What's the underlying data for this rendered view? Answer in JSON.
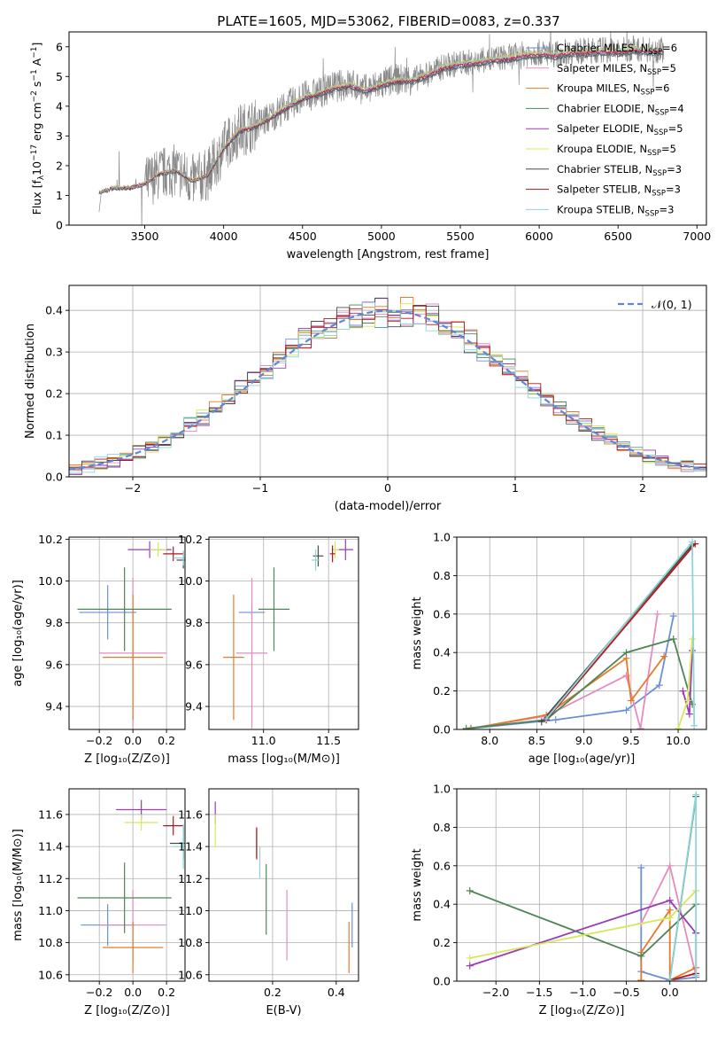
{
  "figure": {
    "title": "PLATE=1605, MJD=53062, FIBERID=0083, z=0.337"
  },
  "models": [
    {
      "name": "Chabrier MILES, N",
      "sub": "SSP",
      "tail": "=6",
      "color": "#6a8fd6"
    },
    {
      "name": "Salpeter MILES, N",
      "sub": "SSP",
      "tail": "=5",
      "color": "#e58bbf"
    },
    {
      "name": "Kroupa MILES, N",
      "sub": "SSP",
      "tail": "=6",
      "color": "#e8792a"
    },
    {
      "name": "Chabrier ELODIE, N",
      "sub": "SSP",
      "tail": "=4",
      "color": "#4f8558"
    },
    {
      "name": "Salpeter ELODIE, N",
      "sub": "SSP",
      "tail": "=5",
      "color": "#9b3bb5"
    },
    {
      "name": "Kroupa ELODIE, N",
      "sub": "SSP",
      "tail": "=5",
      "color": "#d6e85a"
    },
    {
      "name": "Chabrier STELIB, N",
      "sub": "SSP",
      "tail": "=3",
      "color": "#4a4a4a"
    },
    {
      "name": "Salpeter STELIB, N",
      "sub": "SSP",
      "tail": "=3",
      "color": "#b5151c"
    },
    {
      "name": "Kroupa STELIB, N",
      "sub": "SSP",
      "tail": "=3",
      "color": "#8ad6d6"
    }
  ],
  "chart_data": [
    {
      "id": "spectrum",
      "type": "line",
      "xlabel": "wavelength [Angstrom, rest frame]",
      "ylabel_parts": [
        "Flux [f",
        "λ",
        "10",
        "−17",
        " erg cm",
        "−2",
        " s",
        "−1",
        " A",
        "−1",
        "]"
      ],
      "xlim": [
        3020,
        7060
      ],
      "ylim": [
        0,
        6.5
      ],
      "xticks": [
        3500,
        4000,
        4500,
        5000,
        5500,
        6000,
        6500,
        7000
      ],
      "yticks": [
        0,
        1,
        2,
        3,
        4,
        5,
        6
      ],
      "data_color": "#8a8a8a",
      "data_x_range": [
        3210,
        6790
      ],
      "continuum": [
        [
          3210,
          1.1
        ],
        [
          3300,
          1.25
        ],
        [
          3400,
          1.25
        ],
        [
          3500,
          1.4
        ],
        [
          3600,
          1.75
        ],
        [
          3700,
          1.85
        ],
        [
          3800,
          1.5
        ],
        [
          3900,
          1.7
        ],
        [
          4000,
          2.6
        ],
        [
          4100,
          3.2
        ],
        [
          4200,
          3.35
        ],
        [
          4300,
          3.65
        ],
        [
          4400,
          4.0
        ],
        [
          4500,
          4.3
        ],
        [
          4600,
          4.45
        ],
        [
          4700,
          4.65
        ],
        [
          4800,
          4.75
        ],
        [
          4900,
          4.55
        ],
        [
          5000,
          4.75
        ],
        [
          5100,
          4.9
        ],
        [
          5200,
          4.9
        ],
        [
          5300,
          5.1
        ],
        [
          5400,
          5.35
        ],
        [
          5500,
          5.45
        ],
        [
          5600,
          5.5
        ],
        [
          5700,
          5.6
        ],
        [
          5800,
          5.65
        ],
        [
          5900,
          5.75
        ],
        [
          6000,
          5.8
        ],
        [
          6100,
          5.75
        ],
        [
          6200,
          5.85
        ],
        [
          6300,
          5.85
        ],
        [
          6400,
          5.9
        ],
        [
          6500,
          5.85
        ],
        [
          6600,
          5.95
        ],
        [
          6700,
          5.9
        ],
        [
          6790,
          5.9
        ]
      ]
    },
    {
      "id": "residuals",
      "type": "histogram",
      "xlabel": "(data-model)/error",
      "ylabel": "Normed distribution",
      "xlim": [
        -2.5,
        2.5
      ],
      "ylim": [
        0,
        0.46
      ],
      "xticks": [
        -2,
        -1,
        0,
        1,
        2
      ],
      "yticks": [
        0.0,
        0.1,
        0.2,
        0.3,
        0.4
      ],
      "bin_width": 0.1,
      "normal_legend": "𝒩(0, 1)",
      "normal_color": "#5f86d6",
      "grid": true
    },
    {
      "id": "age-metal",
      "type": "errorbar",
      "xlabel": "Z [log₁₀(Z/Z⊙)]",
      "ylabel": "age  [log₁₀(age/yr)]",
      "xlim": [
        -0.38,
        0.31
      ],
      "ylim": [
        9.29,
        10.21
      ],
      "xticks": [
        -0.2,
        0.0,
        0.2
      ],
      "xticklabels": [
        "−0.2",
        "0.0",
        "0.2"
      ],
      "yticks": [
        9.4,
        9.6,
        9.8,
        10.0,
        10.2
      ],
      "points": [
        {
          "x": -0.15,
          "xe": 0.17,
          "y": 9.85,
          "ye": 0.13,
          "c": 0
        },
        {
          "x": 0.0,
          "xe": 0.2,
          "y": 9.655,
          "ye": 0.36,
          "c": 1
        },
        {
          "x": 0.0,
          "xe": 0.18,
          "y": 9.635,
          "ye": 0.3,
          "c": 2
        },
        {
          "x": -0.05,
          "xe": 0.28,
          "y": 9.865,
          "ye": 0.2,
          "c": 3
        },
        {
          "x": 0.1,
          "xe": 0.13,
          "y": 10.15,
          "ye": 0.04,
          "c": 4
        },
        {
          "x": 0.15,
          "xe": 0.05,
          "y": 10.15,
          "ye": 0.035,
          "c": 5
        },
        {
          "x": 0.3,
          "xe": 0.04,
          "y": 10.1,
          "ye": 0.04,
          "c": 6
        },
        {
          "x": 0.24,
          "xe": 0.06,
          "y": 10.13,
          "ye": 0.035,
          "c": 7
        },
        {
          "x": 0.3,
          "xe": 0.06,
          "y": 10.11,
          "ye": 0.035,
          "c": 8
        }
      ]
    },
    {
      "id": "age-mass",
      "type": "errorbar",
      "xlabel": "mass [log₁₀(M/M⊙)]",
      "xlim": [
        10.58,
        11.73
      ],
      "ylim": [
        9.29,
        10.21
      ],
      "xticks": [
        11.0,
        11.5
      ],
      "yticks": [
        9.4,
        9.6,
        9.8,
        10.0,
        10.2
      ],
      "points": [
        {
          "x": 10.91,
          "xe": 0.1,
          "y": 9.85,
          "ye": 0.03,
          "c": 0
        },
        {
          "x": 10.91,
          "xe": 0.12,
          "y": 9.655,
          "ye": 0.36,
          "c": 1
        },
        {
          "x": 10.77,
          "xe": 0.08,
          "y": 9.635,
          "ye": 0.3,
          "c": 2
        },
        {
          "x": 11.08,
          "xe": 0.12,
          "y": 9.865,
          "ye": 0.2,
          "c": 3
        },
        {
          "x": 11.63,
          "xe": 0.06,
          "y": 10.15,
          "ye": 0.05,
          "c": 4
        },
        {
          "x": 11.55,
          "xe": 0.03,
          "y": 10.15,
          "ye": 0.04,
          "c": 5
        },
        {
          "x": 11.42,
          "xe": 0.04,
          "y": 10.12,
          "ye": 0.05,
          "c": 6
        },
        {
          "x": 11.53,
          "xe": 0.02,
          "y": 10.13,
          "ye": 0.04,
          "c": 7
        },
        {
          "x": 11.4,
          "xe": 0.03,
          "y": 10.1,
          "ye": 0.05,
          "c": 8
        }
      ]
    },
    {
      "id": "massweight-age",
      "type": "line",
      "xlabel": "age  [log₁₀(age/yr)]",
      "ylabel": "mass weight",
      "xlim": [
        7.65,
        10.3
      ],
      "ylim": [
        0,
        1.0
      ],
      "xticks": [
        8.0,
        8.5,
        9.0,
        9.5,
        10.0
      ],
      "yticks": [
        0.0,
        0.2,
        0.4,
        0.6,
        0.8,
        1.0
      ],
      "series": [
        {
          "c": 0,
          "pts": [
            [
              7.8,
              0.005
            ],
            [
              8.7,
              0.05
            ],
            [
              9.45,
              0.1
            ],
            [
              9.8,
              0.23
            ],
            [
              9.95,
              0.59
            ]
          ]
        },
        {
          "c": 1,
          "pts": [
            [
              7.8,
              0.005
            ],
            [
              8.6,
              0.07
            ],
            [
              9.45,
              0.28
            ],
            [
              9.6,
              0.005
            ],
            [
              9.78,
              0.6
            ]
          ]
        },
        {
          "c": 2,
          "pts": [
            [
              7.8,
              0.005
            ],
            [
              8.6,
              0.075
            ],
            [
              9.45,
              0.37
            ],
            [
              9.5,
              0.15
            ],
            [
              9.85,
              0.38
            ]
          ]
        },
        {
          "c": 3,
          "pts": [
            [
              7.75,
              0.005
            ],
            [
              8.6,
              0.05
            ],
            [
              9.45,
              0.4
            ],
            [
              9.95,
              0.47
            ],
            [
              10.15,
              0.13
            ]
          ]
        },
        {
          "c": 4,
          "pts": [
            [
              10.05,
              0.2
            ],
            [
              10.12,
              0.08
            ],
            [
              10.15,
              0.41
            ]
          ]
        },
        {
          "c": 5,
          "pts": [
            [
              10.0,
              0.005
            ],
            [
              10.1,
              0.15
            ],
            [
              10.15,
              0.47
            ]
          ]
        },
        {
          "c": 6,
          "pts": [
            [
              8.55,
              0.04
            ],
            [
              10.15,
              0.96
            ]
          ]
        },
        {
          "c": 7,
          "pts": [
            [
              8.6,
              0.05
            ],
            [
              10.18,
              0.965
            ]
          ]
        },
        {
          "c": 8,
          "pts": [
            [
              8.6,
              0.055
            ],
            [
              10.15,
              0.975
            ],
            [
              10.17,
              0.02
            ]
          ]
        }
      ]
    },
    {
      "id": "mass-metal",
      "type": "errorbar",
      "xlabel": "Z [log₁₀(Z/Z⊙)]",
      "ylabel": "mass [log₁₀(M/M⊙)]",
      "xlim": [
        -0.38,
        0.31
      ],
      "ylim": [
        10.56,
        11.76
      ],
      "xticks": [
        -0.2,
        0.0,
        0.2
      ],
      "xticklabels": [
        "−0.2",
        "0.0",
        "0.2"
      ],
      "yticks": [
        10.6,
        10.8,
        11.0,
        11.2,
        11.4,
        11.6
      ],
      "points": [
        {
          "x": -0.15,
          "xe": 0.16,
          "y": 10.91,
          "ye": 0.13,
          "c": 0
        },
        {
          "x": 0.0,
          "xe": 0.2,
          "y": 10.91,
          "ye": 0.22,
          "c": 1
        },
        {
          "x": 0.0,
          "xe": 0.18,
          "y": 10.77,
          "ye": 0.16,
          "c": 2
        },
        {
          "x": -0.05,
          "xe": 0.28,
          "y": 11.08,
          "ye": 0.22,
          "c": 3
        },
        {
          "x": 0.05,
          "xe": 0.15,
          "y": 11.63,
          "ye": 0.06,
          "c": 4
        },
        {
          "x": 0.05,
          "xe": 0.1,
          "y": 11.55,
          "ye": 0.05,
          "c": 5
        },
        {
          "x": 0.3,
          "xe": 0.08,
          "y": 11.42,
          "ye": 0.1,
          "c": 6
        },
        {
          "x": 0.24,
          "xe": 0.06,
          "y": 11.53,
          "ye": 0.06,
          "c": 7
        },
        {
          "x": 0.3,
          "xe": 0.06,
          "y": 11.4,
          "ye": 0.14,
          "c": 8
        }
      ]
    },
    {
      "id": "mass-ebv",
      "type": "errorbar",
      "xlabel": "E(B-V)",
      "xlim": [
        0.0,
        0.47
      ],
      "ylim": [
        10.56,
        11.76
      ],
      "xticks": [
        0.2,
        0.4
      ],
      "yticks": [
        10.6,
        10.8,
        11.0,
        11.2,
        11.4,
        11.6
      ],
      "points": [
        {
          "x": 0.45,
          "xe": 0,
          "y": 10.91,
          "ye": 0.14,
          "c": 0
        },
        {
          "x": 0.245,
          "xe": 0,
          "y": 10.91,
          "ye": 0.22,
          "c": 1
        },
        {
          "x": 0.44,
          "xe": 0,
          "y": 10.77,
          "ye": 0.16,
          "c": 2
        },
        {
          "x": 0.18,
          "xe": 0,
          "y": 11.07,
          "ye": 0.22,
          "c": 3
        },
        {
          "x": 0.02,
          "xe": 0,
          "y": 11.61,
          "ye": 0.07,
          "c": 4
        },
        {
          "x": 0.02,
          "xe": 0,
          "y": 11.5,
          "ye": 0.1,
          "c": 5
        },
        {
          "x": 0.15,
          "xe": 0,
          "y": 11.42,
          "ye": 0.09,
          "c": 6
        },
        {
          "x": 0.15,
          "xe": 0,
          "y": 11.42,
          "ye": 0.1,
          "c": 7
        },
        {
          "x": 0.16,
          "xe": 0,
          "y": 11.3,
          "ye": 0.1,
          "c": 8
        }
      ]
    },
    {
      "id": "massweight-metal",
      "type": "line",
      "xlabel": "Z [log₁₀(Z/Z⊙)]",
      "ylabel": "mass weight",
      "xlim": [
        -2.45,
        0.42
      ],
      "ylim": [
        0,
        1.0
      ],
      "xticks": [
        -2.0,
        -1.5,
        -1.0,
        -0.5,
        0.0
      ],
      "xticklabels": [
        "−2.0",
        "−1.5",
        "−1.0",
        "−0.5",
        "0.0"
      ],
      "yticks": [
        0.0,
        0.2,
        0.4,
        0.6,
        0.8,
        1.0
      ],
      "series": [
        {
          "c": 0,
          "pts": [
            [
              -0.33,
              0.59
            ],
            [
              -0.33,
              0.05
            ],
            [
              0.0,
              0.005
            ],
            [
              0.3,
              0.02
            ],
            [
              0.3,
              0.25
            ]
          ]
        },
        {
          "c": 1,
          "pts": [
            [
              -0.33,
              0.3
            ],
            [
              0.0,
              0.6
            ],
            [
              0.3,
              0.03
            ],
            [
              0.3,
              0.07
            ]
          ]
        },
        {
          "c": 2,
          "pts": [
            [
              -0.33,
              0.005
            ],
            [
              -0.33,
              0.15
            ],
            [
              0.0,
              0.37
            ],
            [
              0.0,
              0.005
            ],
            [
              0.3,
              0.07
            ]
          ]
        },
        {
          "c": 3,
          "pts": [
            [
              -2.3,
              0.47
            ],
            [
              -0.33,
              0.13
            ],
            [
              0.3,
              0.4
            ]
          ]
        },
        {
          "c": 4,
          "pts": [
            [
              -2.3,
              0.08
            ],
            [
              0.0,
              0.42
            ],
            [
              0.3,
              0.25
            ]
          ]
        },
        {
          "c": 5,
          "pts": [
            [
              -2.3,
              0.12
            ],
            [
              0.0,
              0.33
            ],
            [
              0.3,
              0.47
            ]
          ]
        },
        {
          "c": 6,
          "pts": [
            [
              0.0,
              0.005
            ],
            [
              0.3,
              0.96
            ]
          ]
        },
        {
          "c": 7,
          "pts": [
            [
              0.0,
              0.005
            ],
            [
              0.3,
              0.04
            ]
          ]
        },
        {
          "c": 8,
          "pts": [
            [
              0.0,
              0.005
            ],
            [
              0.3,
              0.97
            ],
            [
              0.3,
              0.03
            ]
          ]
        }
      ]
    }
  ]
}
